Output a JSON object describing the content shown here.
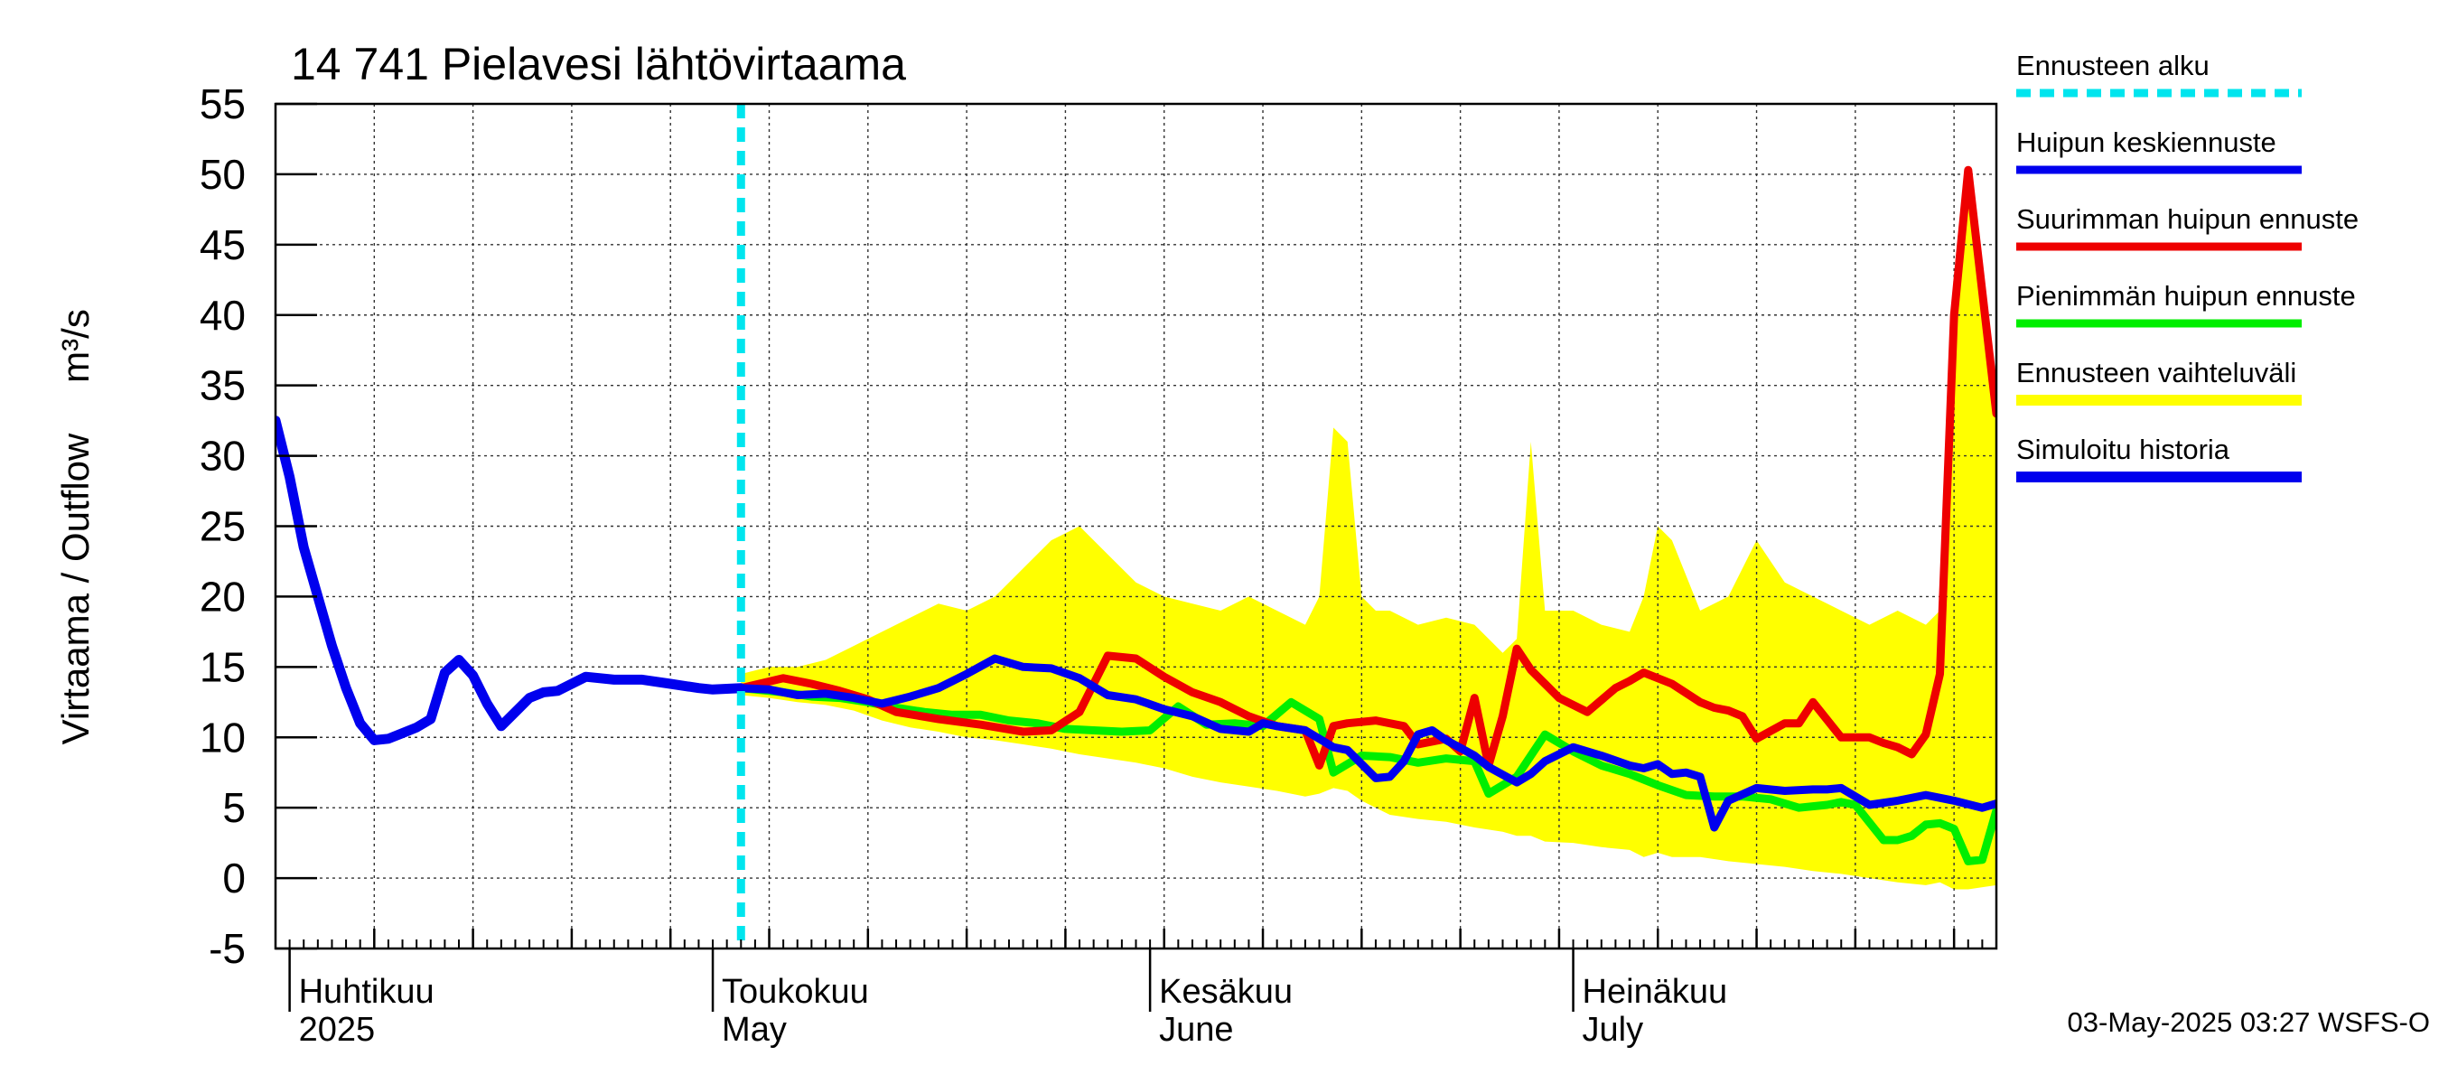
{
  "chart_data": {
    "type": "line",
    "title": "14 741 Pielavesi lähtövirtaama",
    "ylabel": "Virtaama / Outflow",
    "yunit": "m³/s",
    "ylim": [
      -5,
      55
    ],
    "yticks": [
      55,
      50,
      45,
      40,
      35,
      30,
      25,
      20,
      15,
      10,
      5,
      0,
      -5
    ],
    "xlim": [
      "2025-03-31",
      "2025-07-31"
    ],
    "grid": true,
    "legend_position": "right",
    "forecast_start": "2025-05-03",
    "month_labels": [
      {
        "date": "2025-04-01",
        "fi": "Huhtikuu",
        "en": "2025"
      },
      {
        "date": "2025-05-01",
        "fi": "Toukokuu",
        "en": "May"
      },
      {
        "date": "2025-06-01",
        "fi": "Kesäkuu",
        "en": "June"
      },
      {
        "date": "2025-07-01",
        "fi": "Heinäkuu",
        "en": "July"
      }
    ],
    "legend": [
      {
        "key": "start",
        "label": "Ennusteen alku",
        "color": "#00e5ee",
        "dashed": true
      },
      {
        "key": "mean",
        "label": "Huipun keskiennuste",
        "color": "#0000ee"
      },
      {
        "key": "max",
        "label": "Suurimman huipun ennuste",
        "color": "#ee0000"
      },
      {
        "key": "min",
        "label": "Pienimmän huipun ennuste",
        "color": "#00ee00"
      },
      {
        "key": "range",
        "label": "Ennusteen vaihteluväli",
        "color": "#ffff00"
      },
      {
        "key": "hist",
        "label": "Simuloitu historia",
        "color": "#0000ee"
      }
    ],
    "series": {
      "hist": {
        "name": "Simuloitu historia",
        "x": [
          "2025-03-31",
          "2025-04-01",
          "2025-04-02",
          "2025-04-04",
          "2025-04-05",
          "2025-04-06",
          "2025-04-07",
          "2025-04-08",
          "2025-04-09",
          "2025-04-10",
          "2025-04-11",
          "2025-04-12",
          "2025-04-13",
          "2025-04-14",
          "2025-04-15",
          "2025-04-16",
          "2025-04-17",
          "2025-04-18",
          "2025-04-19",
          "2025-04-20",
          "2025-04-22",
          "2025-04-24",
          "2025-04-26",
          "2025-04-28",
          "2025-04-30",
          "2025-05-01",
          "2025-05-03"
        ],
        "values": [
          32.5,
          28.5,
          23.5,
          16.5,
          13.5,
          11.0,
          9.8,
          9.9,
          10.3,
          10.7,
          11.3,
          14.6,
          15.5,
          14.4,
          12.4,
          10.8,
          11.8,
          12.8,
          13.2,
          13.3,
          14.3,
          14.1,
          14.1,
          13.8,
          13.5,
          13.4,
          13.5
        ]
      },
      "mean": {
        "name": "Huipun keskiennuste",
        "x": [
          "2025-05-03",
          "2025-05-05",
          "2025-05-07",
          "2025-05-09",
          "2025-05-11",
          "2025-05-13",
          "2025-05-15",
          "2025-05-17",
          "2025-05-19",
          "2025-05-21",
          "2025-05-23",
          "2025-05-25",
          "2025-05-27",
          "2025-05-29",
          "2025-05-31",
          "2025-06-02",
          "2025-06-04",
          "2025-06-06",
          "2025-06-08",
          "2025-06-09",
          "2025-06-10",
          "2025-06-12",
          "2025-06-14",
          "2025-06-15",
          "2025-06-17",
          "2025-06-18",
          "2025-06-19",
          "2025-06-20",
          "2025-06-21",
          "2025-06-22",
          "2025-06-24",
          "2025-06-25",
          "2025-06-27",
          "2025-06-28",
          "2025-06-29",
          "2025-07-01",
          "2025-07-03",
          "2025-07-05",
          "2025-07-06",
          "2025-07-07",
          "2025-07-08",
          "2025-07-09",
          "2025-07-10",
          "2025-07-11",
          "2025-07-12",
          "2025-07-14",
          "2025-07-16",
          "2025-07-18",
          "2025-07-19",
          "2025-07-20",
          "2025-07-22",
          "2025-07-24",
          "2025-07-26",
          "2025-07-28",
          "2025-07-30",
          "2025-07-31"
        ],
        "values": [
          13.5,
          13.4,
          13.0,
          13.1,
          12.8,
          12.4,
          12.9,
          13.5,
          14.5,
          15.6,
          15.0,
          14.9,
          14.2,
          13.0,
          12.7,
          12.0,
          11.5,
          10.6,
          10.4,
          11.0,
          10.8,
          10.5,
          9.3,
          9.1,
          7.1,
          7.2,
          8.3,
          10.2,
          10.5,
          9.8,
          8.7,
          7.9,
          6.8,
          7.4,
          8.3,
          9.3,
          8.7,
          8.0,
          7.8,
          8.1,
          7.4,
          7.5,
          7.2,
          3.6,
          5.5,
          6.4,
          6.2,
          6.3,
          6.3,
          6.4,
          5.2,
          5.5,
          5.9,
          5.5,
          5.0,
          5.3
        ]
      },
      "max": {
        "name": "Suurimman huipun ennuste",
        "x": [
          "2025-05-03",
          "2025-05-06",
          "2025-05-08",
          "2025-05-10",
          "2025-05-12",
          "2025-05-14",
          "2025-05-17",
          "2025-05-20",
          "2025-05-23",
          "2025-05-25",
          "2025-05-27",
          "2025-05-29",
          "2025-05-31",
          "2025-06-02",
          "2025-06-04",
          "2025-06-06",
          "2025-06-08",
          "2025-06-10",
          "2025-06-12",
          "2025-06-13",
          "2025-06-14",
          "2025-06-15",
          "2025-06-17",
          "2025-06-19",
          "2025-06-20",
          "2025-06-22",
          "2025-06-23",
          "2025-06-24",
          "2025-06-25",
          "2025-06-26",
          "2025-06-27",
          "2025-06-28",
          "2025-06-29",
          "2025-06-30",
          "2025-07-02",
          "2025-07-04",
          "2025-07-05",
          "2025-07-06",
          "2025-07-08",
          "2025-07-10",
          "2025-07-11",
          "2025-07-12",
          "2025-07-13",
          "2025-07-14",
          "2025-07-16",
          "2025-07-17",
          "2025-07-18",
          "2025-07-20",
          "2025-07-22",
          "2025-07-23",
          "2025-07-24",
          "2025-07-25",
          "2025-07-26",
          "2025-07-27",
          "2025-07-28",
          "2025-07-29",
          "2025-07-31"
        ],
        "values": [
          13.5,
          14.2,
          13.8,
          13.3,
          12.7,
          11.8,
          11.3,
          10.9,
          10.4,
          10.5,
          11.8,
          15.8,
          15.6,
          14.3,
          13.2,
          12.5,
          11.5,
          10.8,
          10.5,
          8.0,
          10.8,
          11.0,
          11.2,
          10.8,
          9.5,
          9.9,
          9.0,
          12.8,
          8.0,
          11.5,
          16.3,
          14.8,
          13.8,
          12.8,
          11.8,
          13.5,
          14.0,
          14.6,
          13.8,
          12.5,
          12.1,
          11.9,
          11.5,
          9.9,
          11.0,
          11.0,
          12.5,
          10.0,
          10.0,
          9.6,
          9.3,
          8.8,
          10.2,
          14.5,
          40.0,
          50.3,
          33.0
        ]
      },
      "min": {
        "name": "Pienimmän huipun ennuste",
        "x": [
          "2025-05-03",
          "2025-05-06",
          "2025-05-08",
          "2025-05-10",
          "2025-05-12",
          "2025-05-14",
          "2025-05-16",
          "2025-05-18",
          "2025-05-20",
          "2025-05-22",
          "2025-05-24",
          "2025-05-26",
          "2025-05-28",
          "2025-05-30",
          "2025-06-01",
          "2025-06-03",
          "2025-06-05",
          "2025-06-07",
          "2025-06-09",
          "2025-06-11",
          "2025-06-13",
          "2025-06-14",
          "2025-06-16",
          "2025-06-18",
          "2025-06-20",
          "2025-06-22",
          "2025-06-24",
          "2025-06-25",
          "2025-06-27",
          "2025-06-29",
          "2025-07-01",
          "2025-07-03",
          "2025-07-05",
          "2025-07-07",
          "2025-07-09",
          "2025-07-11",
          "2025-07-13",
          "2025-07-15",
          "2025-07-17",
          "2025-07-19",
          "2025-07-20",
          "2025-07-21",
          "2025-07-23",
          "2025-07-24",
          "2025-07-25",
          "2025-07-26",
          "2025-07-27",
          "2025-07-28",
          "2025-07-29",
          "2025-07-30",
          "2025-07-31"
        ],
        "values": [
          13.5,
          13.2,
          12.9,
          12.8,
          12.5,
          12.1,
          11.8,
          11.6,
          11.6,
          11.2,
          11.0,
          10.6,
          10.5,
          10.4,
          10.5,
          12.2,
          10.9,
          11.0,
          10.8,
          12.5,
          11.3,
          7.5,
          8.7,
          8.6,
          8.2,
          8.5,
          8.3,
          6.0,
          7.2,
          10.2,
          9.0,
          8.0,
          7.4,
          6.6,
          5.9,
          5.8,
          5.8,
          5.6,
          5.0,
          5.2,
          5.4,
          5.2,
          2.7,
          2.7,
          3.0,
          3.8,
          3.9,
          3.5,
          1.2,
          1.3,
          4.8
        ]
      },
      "range": {
        "name": "Ennusteen vaihteluväli",
        "x": [
          "2025-05-03",
          "2025-05-05",
          "2025-05-07",
          "2025-05-09",
          "2025-05-11",
          "2025-05-13",
          "2025-05-15",
          "2025-05-17",
          "2025-05-19",
          "2025-05-21",
          "2025-05-23",
          "2025-05-25",
          "2025-05-27",
          "2025-05-29",
          "2025-05-31",
          "2025-06-02",
          "2025-06-04",
          "2025-06-06",
          "2025-06-08",
          "2025-06-10",
          "2025-06-12",
          "2025-06-13",
          "2025-06-14",
          "2025-06-15",
          "2025-06-16",
          "2025-06-17",
          "2025-06-18",
          "2025-06-20",
          "2025-06-22",
          "2025-06-24",
          "2025-06-26",
          "2025-06-27",
          "2025-06-28",
          "2025-06-29",
          "2025-07-01",
          "2025-07-03",
          "2025-07-05",
          "2025-07-06",
          "2025-07-07",
          "2025-07-08",
          "2025-07-10",
          "2025-07-12",
          "2025-07-14",
          "2025-07-16",
          "2025-07-18",
          "2025-07-20",
          "2025-07-22",
          "2025-07-24",
          "2025-07-26",
          "2025-07-27",
          "2025-07-28",
          "2025-07-29",
          "2025-07-31"
        ],
        "upper": [
          14.5,
          15.0,
          15.0,
          15.5,
          16.5,
          17.5,
          18.5,
          19.5,
          19.0,
          20.0,
          22.0,
          24.0,
          25.0,
          23.0,
          21.0,
          20.0,
          19.5,
          19.0,
          20.0,
          19.0,
          18.0,
          20.0,
          32.0,
          31.0,
          20.0,
          19.0,
          19.0,
          18.0,
          18.5,
          18.0,
          16.0,
          17.0,
          31.0,
          19.0,
          19.0,
          18.0,
          17.5,
          20.0,
          25.0,
          24.0,
          19.0,
          20.0,
          24.0,
          21.0,
          20.0,
          19.0,
          18.0,
          19.0,
          18.0,
          19.0,
          40.0,
          50.3,
          33.0
        ],
        "lower": [
          13.0,
          12.8,
          12.5,
          12.3,
          11.9,
          11.2,
          10.7,
          10.4,
          10.0,
          9.8,
          9.5,
          9.2,
          8.8,
          8.5,
          8.2,
          7.8,
          7.2,
          6.8,
          6.5,
          6.2,
          5.8,
          6.0,
          6.4,
          6.2,
          5.5,
          5.0,
          4.5,
          4.2,
          4.0,
          3.6,
          3.3,
          3.0,
          3.0,
          2.6,
          2.5,
          2.2,
          2.0,
          1.5,
          1.8,
          1.5,
          1.5,
          1.2,
          1.0,
          0.8,
          0.5,
          0.3,
          0.0,
          -0.3,
          -0.5,
          -0.3,
          -0.8,
          -0.8,
          -0.5
        ]
      }
    }
  },
  "timestamp": "03-May-2025 03:27 WSFS-O"
}
